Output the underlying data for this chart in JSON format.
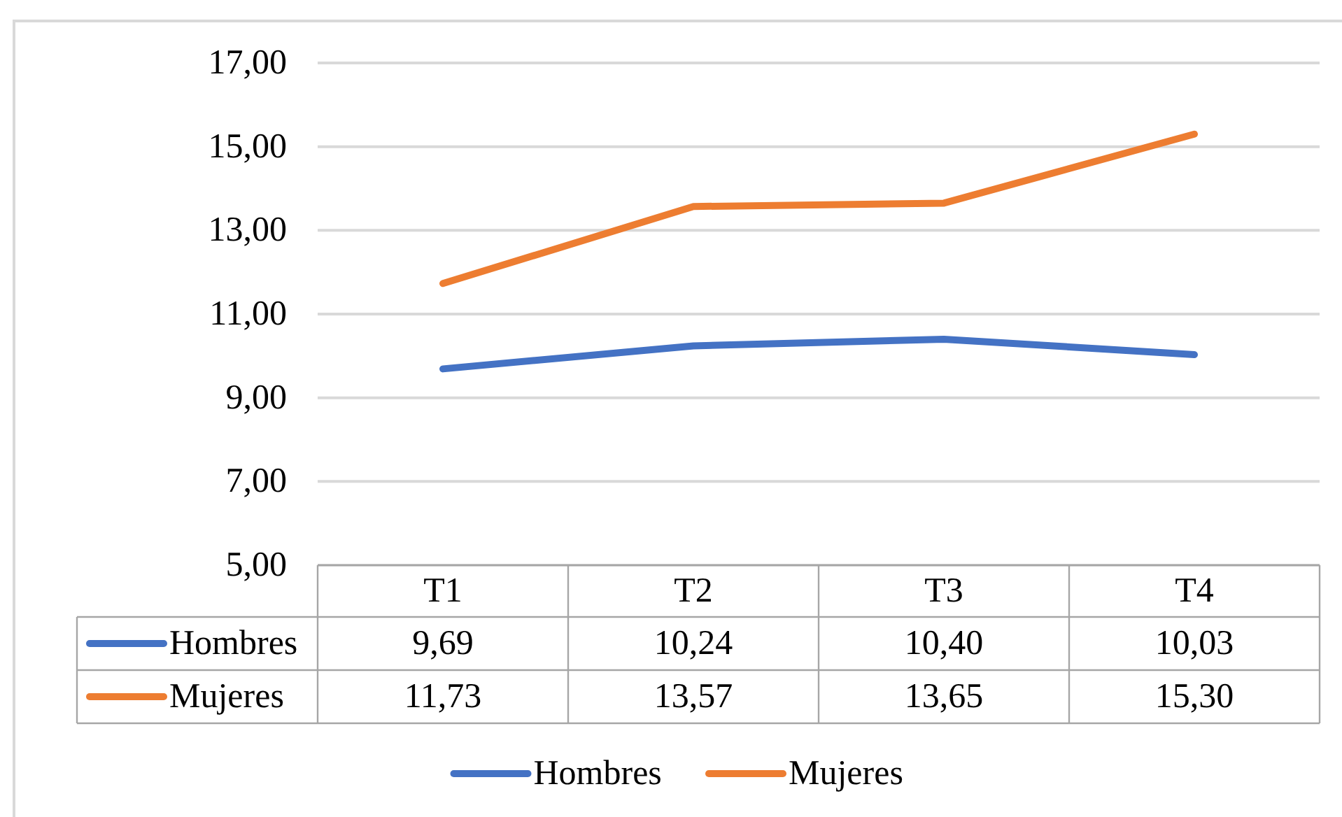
{
  "chart_data": {
    "type": "line",
    "categories": [
      "T1",
      "T2",
      "T3",
      "T4"
    ],
    "series": [
      {
        "name": "Hombres",
        "color": "#4472c4",
        "values": [
          9.69,
          10.24,
          10.4,
          10.03
        ],
        "value_labels": [
          "9,69",
          "10,24",
          "10,40",
          "10,03"
        ]
      },
      {
        "name": "Mujeres",
        "color": "#ed7d31",
        "values": [
          11.73,
          13.57,
          13.65,
          15.3
        ],
        "value_labels": [
          "11,73",
          "13,57",
          "13,65",
          "15,30"
        ]
      }
    ],
    "ylim": [
      5,
      17
    ],
    "yticks": [
      {
        "value": 5,
        "label": "5,00"
      },
      {
        "value": 7,
        "label": "7,00"
      },
      {
        "value": 9,
        "label": "9,00"
      },
      {
        "value": 11,
        "label": "11,00"
      },
      {
        "value": 13,
        "label": "13,00"
      },
      {
        "value": 15,
        "label": "15,00"
      },
      {
        "value": 17,
        "label": "17,00"
      }
    ],
    "grid": "y",
    "legend": "bottom"
  }
}
